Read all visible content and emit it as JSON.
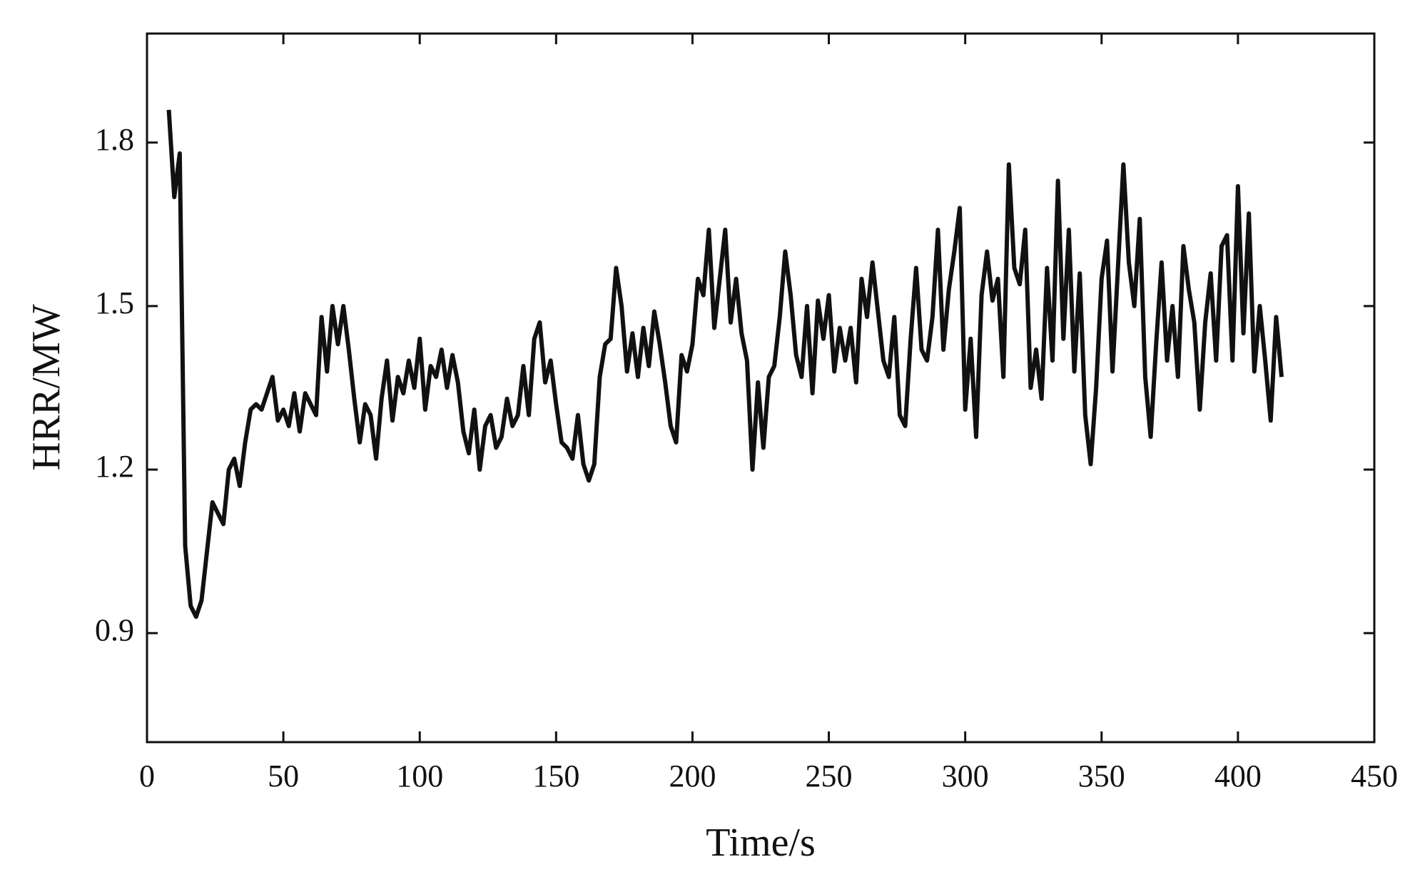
{
  "chart_data": {
    "type": "line",
    "x_label": "Time/s",
    "y_label": "HRR/MW",
    "color": "#111111",
    "xlim": [
      0,
      450
    ],
    "xticks": [
      0,
      50,
      100,
      150,
      200,
      250,
      300,
      350,
      400,
      450
    ],
    "ylim": [
      0.7,
      2.0
    ],
    "yticks": [
      0.9,
      1.2,
      1.5,
      1.8
    ],
    "x": [
      8,
      10,
      12,
      14,
      16,
      18,
      20,
      22,
      24,
      26,
      28,
      30,
      32,
      34,
      36,
      38,
      40,
      42,
      44,
      46,
      48,
      50,
      52,
      54,
      56,
      58,
      60,
      62,
      64,
      66,
      68,
      70,
      72,
      74,
      76,
      78,
      80,
      82,
      84,
      86,
      88,
      90,
      92,
      94,
      96,
      98,
      100,
      102,
      104,
      106,
      108,
      110,
      112,
      114,
      116,
      118,
      120,
      122,
      124,
      126,
      128,
      130,
      132,
      134,
      136,
      138,
      140,
      142,
      144,
      146,
      148,
      150,
      152,
      154,
      156,
      158,
      160,
      162,
      164,
      166,
      168,
      170,
      172,
      174,
      176,
      178,
      180,
      182,
      184,
      186,
      188,
      190,
      192,
      194,
      196,
      198,
      200,
      202,
      204,
      206,
      208,
      210,
      212,
      214,
      216,
      218,
      220,
      222,
      224,
      226,
      228,
      230,
      232,
      234,
      236,
      238,
      240,
      242,
      244,
      246,
      248,
      250,
      252,
      254,
      256,
      258,
      260,
      262,
      264,
      266,
      268,
      270,
      272,
      274,
      276,
      278,
      280,
      282,
      284,
      286,
      288,
      290,
      292,
      294,
      296,
      298,
      300,
      302,
      304,
      306,
      308,
      310,
      312,
      314,
      316,
      318,
      320,
      322,
      324,
      326,
      328,
      330,
      332,
      334,
      336,
      338,
      340,
      342,
      344,
      346,
      348,
      350,
      352,
      354,
      356,
      358,
      360,
      362,
      364,
      366,
      368,
      370,
      372,
      374,
      376,
      378,
      380,
      382,
      384,
      386,
      388,
      390,
      392,
      394,
      396,
      398,
      400,
      402,
      404,
      406,
      408,
      410,
      412,
      414,
      416
    ],
    "values": [
      1.86,
      1.7,
      1.78,
      1.06,
      0.95,
      0.93,
      0.96,
      1.05,
      1.14,
      1.12,
      1.1,
      1.2,
      1.22,
      1.17,
      1.25,
      1.31,
      1.32,
      1.31,
      1.34,
      1.37,
      1.29,
      1.31,
      1.28,
      1.34,
      1.27,
      1.34,
      1.32,
      1.3,
      1.48,
      1.38,
      1.5,
      1.43,
      1.5,
      1.42,
      1.33,
      1.25,
      1.32,
      1.3,
      1.22,
      1.33,
      1.4,
      1.29,
      1.37,
      1.34,
      1.4,
      1.35,
      1.44,
      1.31,
      1.39,
      1.37,
      1.42,
      1.35,
      1.41,
      1.36,
      1.27,
      1.23,
      1.31,
      1.2,
      1.28,
      1.3,
      1.24,
      1.26,
      1.33,
      1.28,
      1.3,
      1.39,
      1.3,
      1.44,
      1.47,
      1.36,
      1.4,
      1.32,
      1.25,
      1.24,
      1.22,
      1.3,
      1.21,
      1.18,
      1.21,
      1.37,
      1.43,
      1.44,
      1.57,
      1.5,
      1.38,
      1.45,
      1.37,
      1.46,
      1.39,
      1.49,
      1.43,
      1.36,
      1.28,
      1.25,
      1.41,
      1.38,
      1.43,
      1.55,
      1.52,
      1.64,
      1.46,
      1.55,
      1.64,
      1.47,
      1.55,
      1.45,
      1.4,
      1.2,
      1.36,
      1.24,
      1.37,
      1.39,
      1.48,
      1.6,
      1.52,
      1.41,
      1.37,
      1.5,
      1.34,
      1.51,
      1.44,
      1.52,
      1.38,
      1.46,
      1.4,
      1.46,
      1.36,
      1.55,
      1.48,
      1.58,
      1.49,
      1.4,
      1.37,
      1.48,
      1.3,
      1.28,
      1.44,
      1.57,
      1.42,
      1.4,
      1.48,
      1.64,
      1.42,
      1.53,
      1.6,
      1.68,
      1.31,
      1.44,
      1.26,
      1.52,
      1.6,
      1.51,
      1.55,
      1.37,
      1.76,
      1.57,
      1.54,
      1.64,
      1.35,
      1.42,
      1.33,
      1.57,
      1.4,
      1.73,
      1.44,
      1.64,
      1.38,
      1.56,
      1.3,
      1.21,
      1.35,
      1.55,
      1.62,
      1.38,
      1.57,
      1.76,
      1.58,
      1.5,
      1.66,
      1.37,
      1.26,
      1.43,
      1.58,
      1.4,
      1.5,
      1.37,
      1.61,
      1.53,
      1.47,
      1.31,
      1.47,
      1.56,
      1.4,
      1.61,
      1.63,
      1.4,
      1.72,
      1.45,
      1.67,
      1.38,
      1.5,
      1.4,
      1.29,
      1.48,
      1.37
    ]
  }
}
